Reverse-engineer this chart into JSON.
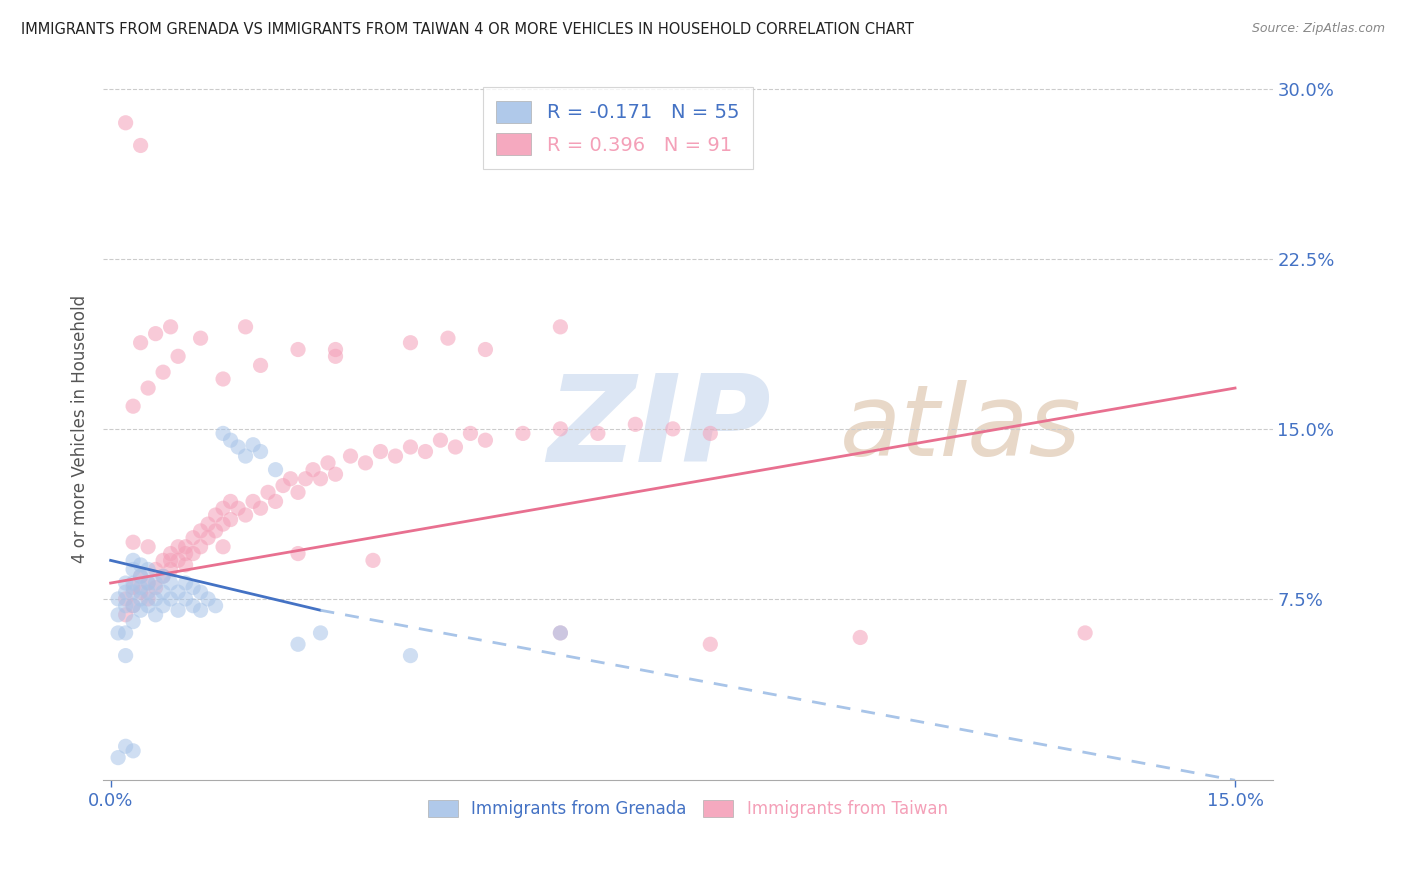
{
  "title": "IMMIGRANTS FROM GRENADA VS IMMIGRANTS FROM TAIWAN 4 OR MORE VEHICLES IN HOUSEHOLD CORRELATION CHART",
  "source": "Source: ZipAtlas.com",
  "ylabel_left": "4 or more Vehicles in Household",
  "legend_grenada": "Immigrants from Grenada",
  "legend_taiwan": "Immigrants from Taiwan",
  "R_grenada": -0.171,
  "N_grenada": 55,
  "R_taiwan": 0.396,
  "N_taiwan": 91,
  "xlim": [
    -0.001,
    0.155
  ],
  "ylim": [
    -0.005,
    0.305
  ],
  "yticks_right": [
    0.075,
    0.15,
    0.225,
    0.3
  ],
  "ytick_labels_right": [
    "7.5%",
    "15.0%",
    "22.5%",
    "30.0%"
  ],
  "xtick_positions": [
    0.0,
    0.15
  ],
  "xtick_labels": [
    "0.0%",
    "15.0%"
  ],
  "color_grenada": "#a8c4e8",
  "color_taiwan": "#f4a0b8",
  "color_trendline_grenada_solid": "#4472c4",
  "color_trendline_taiwan": "#e87090",
  "color_trendline_grenada_dashed": "#a8c4e8",
  "color_axis_labels": "#4472c4",
  "color_title": "#222222",
  "color_source": "#888888",
  "color_grid": "#cccccc",
  "color_watermark": "#dce6f4",
  "scatter_alpha": 0.55,
  "scatter_size": 120,
  "trendline_taiwan_x0": 0.0,
  "trendline_taiwan_y0": 0.082,
  "trendline_taiwan_x1": 0.15,
  "trendline_taiwan_y1": 0.168,
  "trendline_grenada_solid_x0": 0.0,
  "trendline_grenada_solid_y0": 0.092,
  "trendline_grenada_solid_x1": 0.028,
  "trendline_grenada_solid_y1": 0.07,
  "trendline_grenada_dashed_x0": 0.028,
  "trendline_grenada_dashed_y0": 0.07,
  "trendline_grenada_dashed_x1": 0.15,
  "trendline_grenada_dashed_y1": -0.005,
  "grenada_x": [
    0.001,
    0.001,
    0.001,
    0.002,
    0.002,
    0.002,
    0.002,
    0.002,
    0.003,
    0.003,
    0.003,
    0.003,
    0.003,
    0.003,
    0.004,
    0.004,
    0.004,
    0.004,
    0.004,
    0.005,
    0.005,
    0.005,
    0.005,
    0.006,
    0.006,
    0.006,
    0.007,
    0.007,
    0.007,
    0.008,
    0.008,
    0.009,
    0.009,
    0.01,
    0.01,
    0.011,
    0.011,
    0.012,
    0.012,
    0.013,
    0.014,
    0.015,
    0.016,
    0.017,
    0.018,
    0.019,
    0.02,
    0.022,
    0.025,
    0.028,
    0.001,
    0.002,
    0.003,
    0.06,
    0.04
  ],
  "grenada_y": [
    0.06,
    0.068,
    0.075,
    0.05,
    0.06,
    0.072,
    0.078,
    0.082,
    0.065,
    0.072,
    0.078,
    0.082,
    0.088,
    0.092,
    0.07,
    0.075,
    0.08,
    0.085,
    0.09,
    0.072,
    0.078,
    0.082,
    0.088,
    0.068,
    0.075,
    0.082,
    0.072,
    0.078,
    0.085,
    0.075,
    0.082,
    0.07,
    0.078,
    0.075,
    0.082,
    0.072,
    0.08,
    0.07,
    0.078,
    0.075,
    0.072,
    0.148,
    0.145,
    0.142,
    0.138,
    0.143,
    0.14,
    0.132,
    0.055,
    0.06,
    0.005,
    0.01,
    0.008,
    0.06,
    0.05
  ],
  "taiwan_x": [
    0.002,
    0.002,
    0.003,
    0.003,
    0.004,
    0.004,
    0.005,
    0.005,
    0.006,
    0.006,
    0.007,
    0.007,
    0.008,
    0.008,
    0.009,
    0.009,
    0.01,
    0.01,
    0.011,
    0.011,
    0.012,
    0.012,
    0.013,
    0.013,
    0.014,
    0.014,
    0.015,
    0.015,
    0.016,
    0.016,
    0.017,
    0.018,
    0.019,
    0.02,
    0.021,
    0.022,
    0.023,
    0.024,
    0.025,
    0.026,
    0.027,
    0.028,
    0.029,
    0.03,
    0.032,
    0.034,
    0.036,
    0.038,
    0.04,
    0.042,
    0.044,
    0.046,
    0.048,
    0.05,
    0.055,
    0.06,
    0.065,
    0.07,
    0.075,
    0.08,
    0.003,
    0.005,
    0.007,
    0.009,
    0.015,
    0.02,
    0.025,
    0.03,
    0.04,
    0.05,
    0.004,
    0.006,
    0.008,
    0.012,
    0.018,
    0.03,
    0.045,
    0.06,
    0.08,
    0.1,
    0.003,
    0.005,
    0.008,
    0.01,
    0.015,
    0.025,
    0.035,
    0.06,
    0.13,
    0.002,
    0.004
  ],
  "taiwan_y": [
    0.068,
    0.075,
    0.072,
    0.08,
    0.078,
    0.085,
    0.075,
    0.082,
    0.08,
    0.088,
    0.085,
    0.092,
    0.088,
    0.095,
    0.092,
    0.098,
    0.09,
    0.098,
    0.095,
    0.102,
    0.098,
    0.105,
    0.102,
    0.108,
    0.105,
    0.112,
    0.108,
    0.115,
    0.11,
    0.118,
    0.115,
    0.112,
    0.118,
    0.115,
    0.122,
    0.118,
    0.125,
    0.128,
    0.122,
    0.128,
    0.132,
    0.128,
    0.135,
    0.13,
    0.138,
    0.135,
    0.14,
    0.138,
    0.142,
    0.14,
    0.145,
    0.142,
    0.148,
    0.145,
    0.148,
    0.15,
    0.148,
    0.152,
    0.15,
    0.148,
    0.16,
    0.168,
    0.175,
    0.182,
    0.172,
    0.178,
    0.185,
    0.182,
    0.188,
    0.185,
    0.188,
    0.192,
    0.195,
    0.19,
    0.195,
    0.185,
    0.19,
    0.195,
    0.055,
    0.058,
    0.1,
    0.098,
    0.092,
    0.095,
    0.098,
    0.095,
    0.092,
    0.06,
    0.06,
    0.285,
    0.275
  ]
}
